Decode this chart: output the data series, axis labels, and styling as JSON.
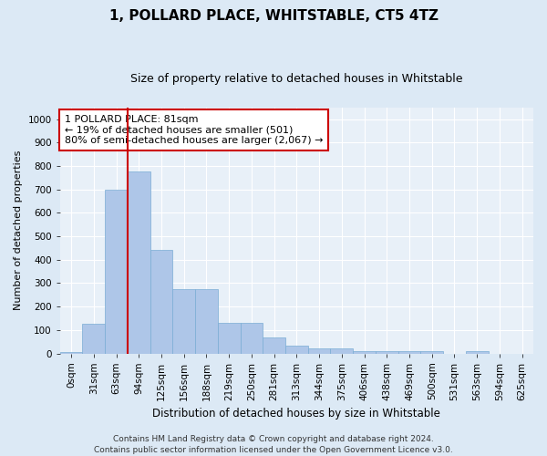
{
  "title": "1, POLLARD PLACE, WHITSTABLE, CT5 4TZ",
  "subtitle": "Size of property relative to detached houses in Whitstable",
  "xlabel": "Distribution of detached houses by size in Whitstable",
  "ylabel": "Number of detached properties",
  "bar_labels": [
    "0sqm",
    "31sqm",
    "63sqm",
    "94sqm",
    "125sqm",
    "156sqm",
    "188sqm",
    "219sqm",
    "250sqm",
    "281sqm",
    "313sqm",
    "344sqm",
    "375sqm",
    "406sqm",
    "438sqm",
    "469sqm",
    "500sqm",
    "531sqm",
    "563sqm",
    "594sqm",
    "625sqm"
  ],
  "bar_values": [
    5,
    125,
    700,
    775,
    440,
    275,
    275,
    130,
    130,
    70,
    35,
    20,
    20,
    10,
    10,
    10,
    10,
    0,
    10,
    0,
    0
  ],
  "bar_color": "#aec6e8",
  "bar_edge_color": "#7aadd4",
  "property_line_x": 2.5,
  "property_line_color": "#cc0000",
  "annotation_text": "1 POLLARD PLACE: 81sqm\n← 19% of detached houses are smaller (501)\n80% of semi-detached houses are larger (2,067) →",
  "annotation_box_color": "#ffffff",
  "annotation_box_edge": "#cc0000",
  "ylim": [
    0,
    1050
  ],
  "yticks": [
    0,
    100,
    200,
    300,
    400,
    500,
    600,
    700,
    800,
    900,
    1000
  ],
  "footer_line1": "Contains HM Land Registry data © Crown copyright and database right 2024.",
  "footer_line2": "Contains public sector information licensed under the Open Government Licence v3.0.",
  "bg_color": "#dce9f5",
  "plot_bg_color": "#e8f0f8",
  "title_fontsize": 11,
  "subtitle_fontsize": 9,
  "tick_fontsize": 7.5,
  "ylabel_fontsize": 8,
  "xlabel_fontsize": 8.5,
  "footer_fontsize": 6.5
}
